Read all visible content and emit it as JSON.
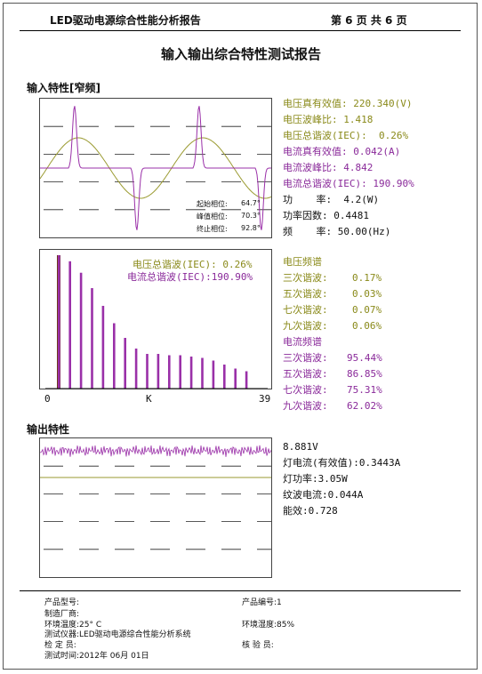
{
  "header": {
    "left": "LED驱动电源综合性能分析报告",
    "right": "第 6 页   共 6 页"
  },
  "title": "输入输出综合特性测试报告",
  "input_section": {
    "label": "输入特性[窄频]",
    "phase": {
      "start_label": "起始相位:",
      "start_value": "64.7°",
      "peak_label": "峰值相位:",
      "peak_value": "70.3°",
      "end_label": "终止相位:",
      "end_value": "92.8°"
    },
    "readings": {
      "v_rms": "电压真有效值: 220.340(V)",
      "v_crest": "电压波峰比: 1.418",
      "v_thd": "电压总谐波(IEC):  0.26%",
      "i_rms": "电流真有效值: 0.042(A)",
      "i_crest": "电流波峰比: 4.842",
      "i_thd": "电流总谐波(IEC): 190.90%",
      "power": "功    率:  4.2(W)",
      "pf": "功率因数: 0.4481",
      "freq": "频    率: 50.00(Hz)"
    }
  },
  "spectrum": {
    "v_thd_label": "电压总谐波(IEC): 0.26%",
    "i_thd_label": "电流总谐波(IEC):190.90%",
    "axis_left": "0",
    "axis_mid": "K",
    "axis_right": "39",
    "voltage_title": "电压频谱",
    "voltage": [
      {
        "label": "三次谐波:",
        "value": "0.17%"
      },
      {
        "label": "五次谐波:",
        "value": "0.03%"
      },
      {
        "label": "七次谐波:",
        "value": "0.07%"
      },
      {
        "label": "九次谐波:",
        "value": "0.06%"
      }
    ],
    "current_title": "电流频谱",
    "current": [
      {
        "label": "三次谐波:",
        "value": "95.44%"
      },
      {
        "label": "五次谐波:",
        "value": "86.85%"
      },
      {
        "label": "七次谐波:",
        "value": "75.31%"
      },
      {
        "label": "九次谐波:",
        "value": "62.02%"
      }
    ],
    "current_harmonics_pct": [
      100,
      95.44,
      86.85,
      75.31,
      62.02,
      49,
      38,
      30,
      26,
      26,
      25,
      25,
      24,
      23,
      21,
      18,
      15,
      13
    ]
  },
  "output_section": {
    "label": "输出特性",
    "readings": {
      "voltage": "8.881V",
      "current": "灯电流(有效值):0.3443A",
      "power": "灯功率:3.05W",
      "ripple": "纹波电流:0.044A",
      "efficiency": "能效:0.728"
    }
  },
  "footer": {
    "model": "产品型号:",
    "serial": "产品编号:1",
    "maker": "制造厂商:",
    "temp": "环境温度:25° C",
    "humidity": "环境湿度:85%",
    "instrument": "测试仪器:LED驱动电源综合性能分析系统",
    "inspector": "检 定 员:",
    "verifier": "核 验 员:",
    "time": "测试时间:2012年 06月 01日"
  },
  "colors": {
    "voltage": "#9a9a30",
    "current": "#9a30a8",
    "fundamental": "#6b3a1a"
  }
}
